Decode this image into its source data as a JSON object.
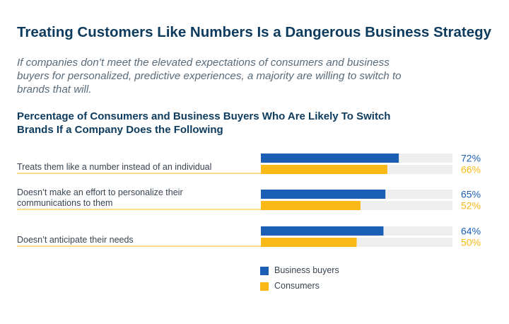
{
  "title": "Treating Customers Like Numbers Is a Dangerous Business Strategy",
  "subtitle": "If companies don’t meet the elevated expectations of consumers and business buyers for personalized, predictive experiences, a majority are willing to switch to brands that will.",
  "colors": {
    "business": "#1a5fb4",
    "consumers": "#fbb917",
    "track": "#efefef",
    "title": "#0d3b5e"
  },
  "chart_data": {
    "type": "bar",
    "orientation": "horizontal",
    "title": "Percentage of Consumers and Business Buyers Who Are Likely To Switch Brands If a Company Does the Following",
    "categories": [
      "Treats them like a number instead of an individual",
      "Doesn’t make an effort to personalize their communications to them",
      "Doesn’t anticipate their needs"
    ],
    "series": [
      {
        "name": "Business buyers",
        "values": [
          72,
          65,
          64
        ]
      },
      {
        "name": "Consumers",
        "values": [
          66,
          52,
          50
        ]
      }
    ],
    "value_labels": [
      [
        "72%",
        "66%"
      ],
      [
        "65%",
        "52%"
      ],
      [
        "64%",
        "50%"
      ]
    ],
    "xlim": [
      0,
      100
    ],
    "legend_position": "bottom"
  }
}
